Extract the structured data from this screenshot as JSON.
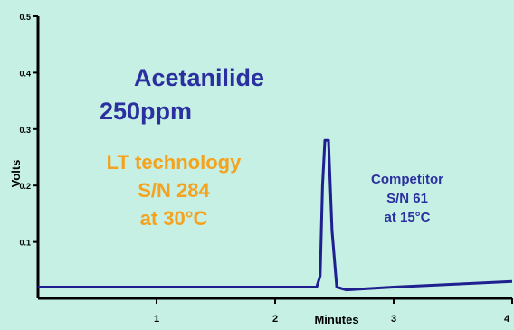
{
  "chart_data": {
    "type": "line",
    "xlabel": "Minutes",
    "ylabel": "Volts",
    "xlim": [
      0,
      4
    ],
    "ylim": [
      0,
      0.5
    ],
    "xticks": [
      1,
      2,
      3,
      4
    ],
    "yticks": [
      0.1,
      0.2,
      0.3,
      0.4,
      0.5
    ],
    "ytick_labels": [
      "0.1",
      "0.2",
      "0.3",
      "0.4",
      "0.5"
    ],
    "grid": false,
    "line_color": "#1f1f8f",
    "series": [
      {
        "x": [
          0.0,
          1.0,
          2.0,
          2.35,
          2.38,
          2.4,
          2.42,
          2.45,
          2.48,
          2.52,
          2.6,
          3.0,
          3.5,
          4.0
        ],
        "y": [
          0.02,
          0.02,
          0.02,
          0.02,
          0.04,
          0.2,
          0.28,
          0.28,
          0.12,
          0.02,
          0.015,
          0.02,
          0.025,
          0.03
        ]
      }
    ]
  },
  "annotations": {
    "title_line1": "Acetanilide",
    "title_line2": "250ppm",
    "lt_line1": "LT technology",
    "lt_line2": "S/N 284",
    "lt_line3": "at 30°C",
    "comp_line1": "Competitor",
    "comp_line2": "S/N 61",
    "comp_line3": "at 15°C"
  },
  "colors": {
    "background": "#c5f0e3",
    "title": "#2b2fa0",
    "lt": "#f5a21f",
    "competitor": "#2b2fa0"
  }
}
